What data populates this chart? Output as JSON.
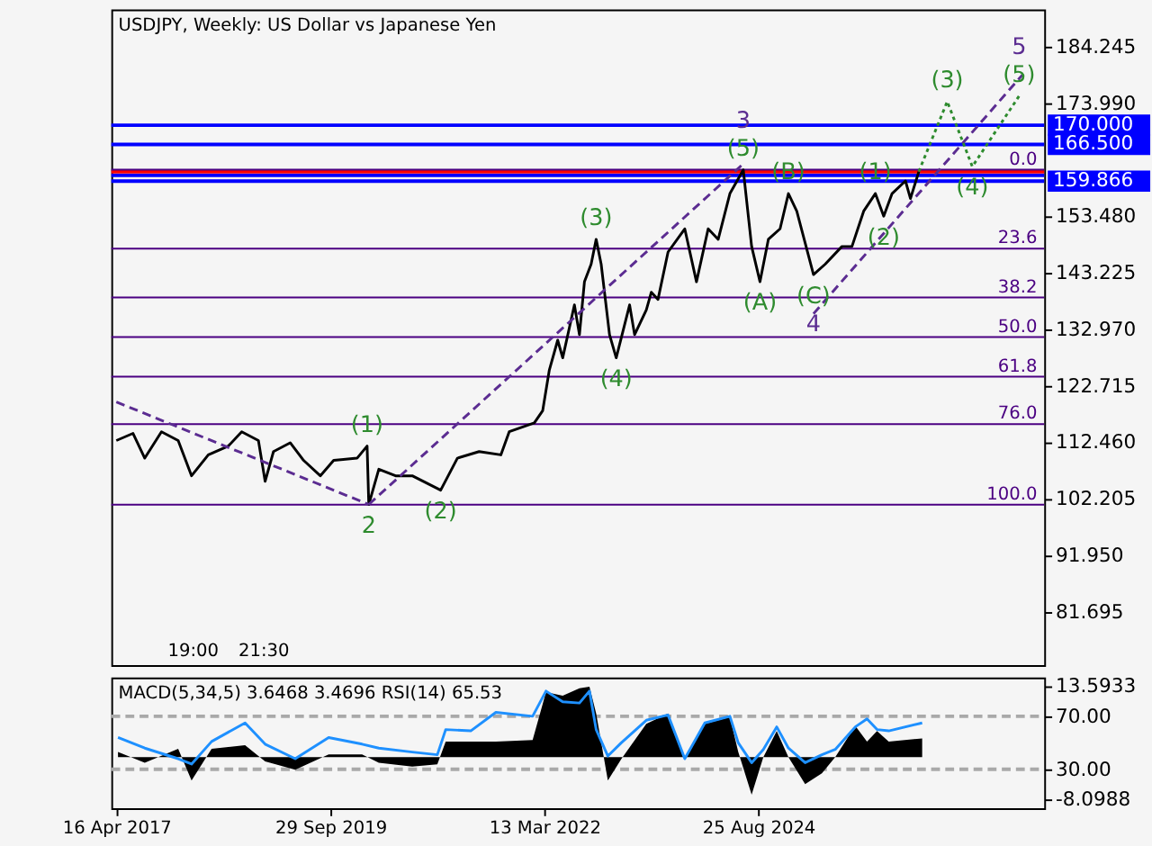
{
  "chart_data": [
    {
      "type": "line",
      "title": "USDJPY, Weekly:  US Dollar vs Japanese Yen",
      "xlim": [
        "2017-03-26",
        "2027-12-05"
      ],
      "ylim": [
        72.07,
        190.98
      ],
      "yticks": [
        184.245,
        {
          "value": 173.99,
          "label": "173.990"
        },
        {
          "value": 153.48,
          "label": "153.480"
        },
        143.225,
        {
          "value": 132.97,
          "label": "132.970"
        },
        122.715,
        {
          "value": 112.46,
          "label": "112.460"
        },
        102.205,
        {
          "value": 91.95,
          "label": "91.950"
        },
        81.695
      ],
      "tick_labels": "y",
      "grid": false,
      "series": [
        {
          "color": "#000000",
          "x": [
            "2017-04-16",
            "2017-06-25",
            "2017-08-13",
            "2017-10-22",
            "2017-12-31",
            "2018-02-25",
            "2018-05-06",
            "2018-07-29",
            "2018-09-23",
            "2018-12-02",
            "2018-12-30",
            "2019-02-03",
            "2019-04-14",
            "2019-06-09",
            "2019-08-18",
            "2019-10-13",
            "2020-01-19",
            "2020-03-01",
            "2020-03-08",
            "2020-04-19",
            "2020-06-28",
            "2020-09-06",
            "2021-01-03",
            "2021-03-14",
            "2021-06-13",
            "2021-09-12",
            "2021-10-17",
            "2022-01-30",
            "2022-03-06",
            "2022-04-03",
            "2022-05-08",
            "2022-05-29",
            "2022-07-17",
            "2022-08-07",
            "2022-08-28",
            "2022-09-25",
            "2022-10-16",
            "2022-11-06",
            "2022-12-11",
            "2023-01-08",
            "2023-03-05",
            "2023-03-26",
            "2023-05-14",
            "2023-06-04",
            "2023-07-02",
            "2023-08-13",
            "2023-10-22",
            "2023-12-10",
            "2024-01-28",
            "2024-03-10",
            "2024-04-28",
            "2024-06-23",
            "2024-07-28",
            "2024-09-01",
            "2024-10-06",
            "2024-11-24",
            "2024-12-29",
            "2025-02-02",
            "2025-04-13",
            "2025-06-01",
            "2025-08-10",
            "2025-09-21",
            "2025-11-09",
            "2025-12-28",
            "2026-02-01",
            "2026-03-08",
            "2026-05-03",
            "2026-05-24",
            "2026-06-28"
          ],
          "values": [
            112.8,
            114.1,
            109.6,
            114.4,
            112.8,
            106.4,
            110.2,
            111.8,
            114.4,
            112.8,
            105.4,
            110.8,
            112.4,
            109.2,
            106.4,
            109.2,
            109.6,
            111.8,
            101.2,
            107.6,
            106.4,
            106.4,
            103.8,
            109.6,
            110.8,
            110.2,
            114.4,
            116.0,
            118.2,
            125.6,
            131.0,
            127.8,
            137.4,
            132.0,
            141.6,
            144.8,
            149.3,
            144.8,
            132.0,
            127.8,
            137.4,
            132.0,
            136.5,
            139.7,
            138.4,
            147.0,
            151.2,
            141.6,
            151.2,
            149.3,
            157.6,
            161.9,
            148.0,
            141.6,
            149.3,
            151.2,
            157.6,
            154.4,
            142.9,
            144.8,
            148.0,
            148.0,
            154.4,
            157.6,
            153.5,
            157.6,
            159.9,
            156.7,
            161.6
          ]
        },
        {
          "type": "line",
          "color": "#5b2c91",
          "line_style": "dashed",
          "x": [
            "2017-04-16",
            "2020-03-08"
          ],
          "values": [
            119.8,
            101.2
          ]
        },
        {
          "type": "line",
          "color": "#5b2c91",
          "line_style": "dashed",
          "x": [
            "2020-03-08",
            "2024-06-23"
          ],
          "values": [
            101.2,
            163.0
          ]
        },
        {
          "type": "line",
          "color": "#5b2c91",
          "line_style": "dashed",
          "x": [
            "2025-04-13",
            "2027-09-04"
          ],
          "values": [
            135.8,
            179.1
          ]
        },
        {
          "type": "line",
          "color": "#2e8b2e",
          "line_style": "dotted",
          "x": [
            "2026-06-28",
            "2026-10-25",
            "2027-02-07",
            "2027-08-22"
          ],
          "values": [
            161.6,
            174.3,
            162.5,
            175.3
          ]
        }
      ],
      "ref_lines": [
        {
          "axis": "y",
          "value": 170.0,
          "label": "170.000",
          "color": "#0000ff"
        },
        {
          "axis": "y",
          "value": 166.5,
          "label": "166.500",
          "color": "#0000ff"
        },
        {
          "axis": "y",
          "value": 161.555,
          "color": "#ff0000"
        },
        {
          "axis": "y",
          "value": 160.9,
          "color": "#0000ff"
        },
        {
          "axis": "y",
          "value": 159.866,
          "label": "159.866",
          "color": "#0000ff"
        },
        {
          "axis": "y",
          "value": 161.95
        },
        {
          "axis": "y",
          "value": 147.61
        },
        {
          "axis": "y",
          "value": 138.74
        },
        {
          "axis": "y",
          "value": 131.57
        },
        {
          "axis": "y",
          "value": 124.39
        },
        {
          "axis": "y",
          "value": 115.76
        },
        {
          "axis": "y",
          "value": 101.18
        }
      ],
      "annotations": [
        {
          "text": "0.0",
          "x": "2027-12-05",
          "y": 161.95
        },
        {
          "text": "23.6",
          "x": "2027-12-05",
          "y": 147.61
        },
        {
          "text": "38.2",
          "x": "2027-12-05",
          "y": 138.74
        },
        {
          "text": "50.0",
          "x": "2027-12-05",
          "y": 131.57
        },
        {
          "text": "61.8",
          "x": "2027-12-05",
          "y": 124.39
        },
        {
          "text": "76.0",
          "x": "2027-12-05",
          "y": 115.76
        },
        {
          "text": "100.0",
          "x": "2027-12-05",
          "y": 101.18
        },
        {
          "text": "(1)",
          "x": "2020-03-01",
          "y": 111.8
        },
        {
          "text": "2",
          "x": "2020-03-08",
          "y": 101.2
        },
        {
          "text": "(2)",
          "x": "2021-01-03",
          "y": 103.8
        },
        {
          "text": "(3)",
          "x": "2022-10-16",
          "y": 149.3
        },
        {
          "text": "(4)",
          "x": "2023-01-08",
          "y": 127.8
        },
        {
          "text": "(5)",
          "x": "2024-06-23",
          "y": 161.9
        },
        {
          "text": "3",
          "x": "2024-06-23",
          "y": 161.9
        },
        {
          "text": "(A)",
          "x": "2024-09-01",
          "y": 141.6
        },
        {
          "text": "(B)",
          "x": "2024-12-29",
          "y": 157.6
        },
        {
          "text": "(C)",
          "x": "2025-04-13",
          "y": 142.9
        },
        {
          "text": "4",
          "x": "2025-04-13",
          "y": 142.9
        },
        {
          "text": "(1)",
          "x": "2025-12-28",
          "y": 157.6
        },
        {
          "text": "(2)",
          "x": "2026-02-01",
          "y": 153.5
        },
        {
          "text": "(3)",
          "x": "2026-10-25",
          "y": 174.3
        },
        {
          "text": "(4)",
          "x": "2027-02-07",
          "y": 162.5
        },
        {
          "text": "(5)",
          "x": "2027-08-22",
          "y": 175.3
        },
        {
          "text": "5",
          "x": "2027-08-22",
          "y": 175.3
        },
        "19:00",
        "21:30"
      ]
    },
    {
      "type": "area",
      "title": "MACD(5,34,5) 3.6468 3.4696 RSI(14) 65.53",
      "xlim": [
        "2017-03-26",
        "2027-12-05"
      ],
      "xticks": [
        {
          "value": "2017-04-16",
          "label": "16 Apr 2017"
        },
        {
          "value": "2019-09-29",
          "label": "29 Sep 2019"
        },
        {
          "value": "2022-03-13",
          "label": "13 Mar 2022"
        },
        {
          "value": "2024-08-25",
          "label": "25 Aug 2024"
        }
      ],
      "x": [
        "2017-04-23",
        "2017-08-13",
        "2017-12-31",
        "2018-02-25",
        "2018-05-20",
        "2018-10-07",
        "2018-12-30",
        "2019-05-05",
        "2019-09-22",
        "2020-02-09",
        "2020-04-19",
        "2020-09-06",
        "2020-12-20",
        "2021-01-24",
        "2021-05-09",
        "2021-08-22",
        "2022-01-23",
        "2022-03-20",
        "2022-05-29",
        "2022-08-07",
        "2022-09-18",
        "2022-10-16",
        "2022-12-04",
        "2023-01-29",
        "2023-05-14",
        "2023-08-13",
        "2023-10-22",
        "2024-01-14",
        "2024-04-28",
        "2024-06-02",
        "2024-07-28",
        "2024-09-15",
        "2024-11-10",
        "2024-12-29",
        "2025-03-09",
        "2025-05-18",
        "2025-07-13",
        "2025-10-05",
        "2025-11-23",
        "2026-01-04",
        "2026-02-22",
        "2026-07-12"
      ],
      "ylim": [
        -9.8,
        15.3
      ],
      "yticks": [
        13.5933,
        -8.0988
      ],
      "y2lim": [
        0.7,
        99.3
      ],
      "y2ticks": [
        {
          "value": 70,
          "label": "70.00"
        },
        {
          "value": 30,
          "label": "30.00"
        }
      ],
      "grid": false,
      "series": [
        {
          "type": "area",
          "color": "#000000",
          "values": [
            1.0,
            -1.1,
            1.6,
            -4.5,
            1.6,
            2.3,
            -0.8,
            -2.4,
            0.5,
            0.5,
            -1.1,
            -1.8,
            -1.4,
            3.0,
            3.0,
            3.0,
            3.3,
            12.5,
            11.8,
            13.2,
            13.5,
            8.4,
            -4.5,
            -0.4,
            6.4,
            8.4,
            -0.4,
            6.4,
            7.7,
            1.0,
            -7.2,
            0.0,
            5.0,
            0.0,
            -5.2,
            -3.1,
            0.0,
            6.0,
            3.0,
            5.0,
            3.0,
            3.6
          ]
        },
        {
          "type": "line",
          "axis": "y2",
          "color": "#1e90ff",
          "values": [
            54,
            46,
            38,
            34,
            51,
            65,
            49,
            38,
            54,
            49,
            46,
            43,
            41,
            60,
            59,
            73,
            70,
            89,
            81,
            80,
            89,
            60,
            40,
            50,
            67,
            71,
            38,
            65,
            70,
            50,
            35,
            45,
            62,
            46,
            35,
            41,
            45,
            62,
            68,
            60,
            59,
            65
          ]
        }
      ],
      "ref_lines": [
        {
          "axis": "y2",
          "value": 70,
          "color": "#a9a9a9",
          "line_style": "dashed"
        },
        {
          "axis": "y2",
          "value": 30,
          "color": "#a9a9a9",
          "line_style": "dashed"
        }
      ]
    }
  ]
}
